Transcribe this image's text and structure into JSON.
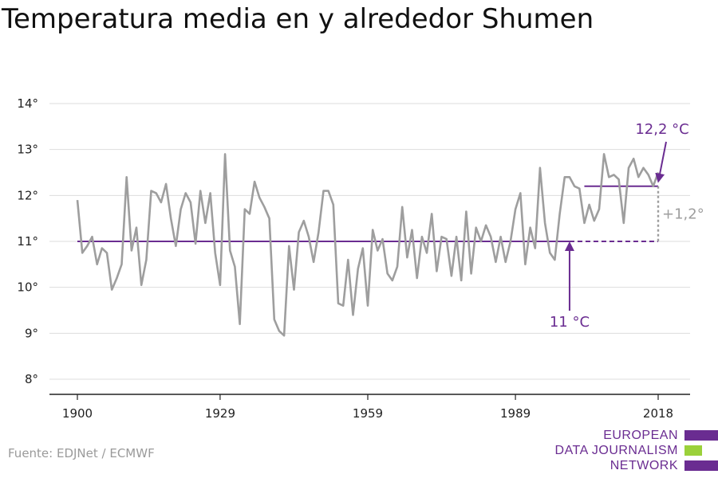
{
  "title": "Temperatura media en y alrededor Shumen",
  "source": "Fuente: EDJNet / ECMWF",
  "logo": {
    "line1": "EUROPEAN",
    "line2": "DATA JOURNALISM",
    "line3": "NETWORK",
    "colors": {
      "purple": "#6a2c91",
      "green": "#9bd13a"
    }
  },
  "colors": {
    "series": "#9e9e9e",
    "accent": "#6a2c91",
    "grid": "#dddddd"
  },
  "chart_data": {
    "type": "line",
    "ylim": [
      7.7,
      14.2
    ],
    "xlim": [
      1898,
      2022
    ],
    "y_ticks": [
      8,
      9,
      10,
      11,
      12,
      13,
      14
    ],
    "y_tick_labels": [
      "8°",
      "9°",
      "10°",
      "11°",
      "12°",
      "13°",
      "14°"
    ],
    "x_ticks": [
      1900,
      1929,
      1959,
      1989,
      2018
    ],
    "x_tick_labels": [
      "1900",
      "1929",
      "1959",
      "1989",
      "2018"
    ],
    "grid": "horizontal",
    "series": [
      {
        "x": [
          1900,
          1901,
          1902,
          1903,
          1904,
          1905,
          1906,
          1907,
          1908,
          1909,
          1910,
          1911,
          1912,
          1913,
          1914,
          1915,
          1916,
          1917,
          1918,
          1919,
          1920,
          1921,
          1922,
          1923,
          1924,
          1925,
          1926,
          1927,
          1928,
          1929,
          1930,
          1931,
          1932,
          1933,
          1934,
          1935,
          1936,
          1937,
          1938,
          1939,
          1940,
          1941,
          1942,
          1943,
          1944,
          1945,
          1946,
          1947,
          1948,
          1949,
          1950,
          1951,
          1952,
          1953,
          1954,
          1955,
          1956,
          1957,
          1958,
          1959,
          1960,
          1961,
          1962,
          1963,
          1964,
          1965,
          1966,
          1967,
          1968,
          1969,
          1970,
          1971,
          1972,
          1973,
          1974,
          1975,
          1976,
          1977,
          1978,
          1979,
          1980,
          1981,
          1982,
          1983,
          1984,
          1985,
          1986,
          1987,
          1988,
          1989,
          1990,
          1991,
          1992,
          1993,
          1994,
          1995,
          1996,
          1997,
          1998,
          1999,
          2000,
          2001,
          2002,
          2003,
          2004,
          2005,
          2006,
          2007,
          2008,
          2009,
          2010,
          2011,
          2012,
          2013,
          2014,
          2015,
          2016,
          2017,
          2018
        ],
        "values": [
          11.9,
          10.75,
          10.9,
          11.1,
          10.5,
          10.85,
          10.75,
          9.95,
          10.2,
          10.5,
          12.4,
          10.8,
          11.3,
          10.05,
          10.6,
          12.1,
          12.05,
          11.85,
          12.25,
          11.5,
          10.9,
          11.7,
          12.05,
          11.85,
          10.95,
          12.1,
          11.4,
          12.05,
          10.75,
          10.05,
          12.9,
          10.8,
          10.45,
          9.2,
          11.7,
          11.6,
          12.3,
          11.95,
          11.75,
          11.5,
          9.3,
          9.05,
          8.95,
          10.9,
          9.95,
          11.2,
          11.45,
          11.1,
          10.55,
          11.2,
          12.1,
          12.1,
          11.8,
          9.65,
          9.6,
          10.6,
          9.4,
          10.4,
          10.85,
          9.6,
          11.25,
          10.8,
          11.05,
          10.3,
          10.15,
          10.45,
          11.75,
          10.65,
          11.25,
          10.2,
          11.1,
          10.75,
          11.6,
          10.35,
          11.1,
          11.05,
          10.25,
          11.1,
          10.15,
          11.65,
          10.3,
          11.3,
          11.0,
          11.35,
          11.1,
          10.55,
          11.1,
          10.55,
          11.0,
          11.7,
          12.05,
          10.5,
          11.3,
          10.85,
          12.6,
          11.4,
          10.75,
          10.6,
          11.6,
          12.4,
          12.4,
          12.2,
          12.15,
          11.4,
          11.8,
          11.45,
          11.7,
          12.9,
          12.4,
          12.45,
          12.35,
          11.4,
          12.6,
          12.8,
          12.4,
          12.6,
          12.45,
          12.2,
          12.5
        ]
      }
    ],
    "reference_lines": [
      {
        "label": "11 °C",
        "value": 11.0,
        "from": 1900,
        "to": 2018
      },
      {
        "label": "12,2 °C",
        "value": 12.2,
        "from": 2003,
        "to": 2018
      }
    ],
    "difference_label": "+1,2°"
  }
}
